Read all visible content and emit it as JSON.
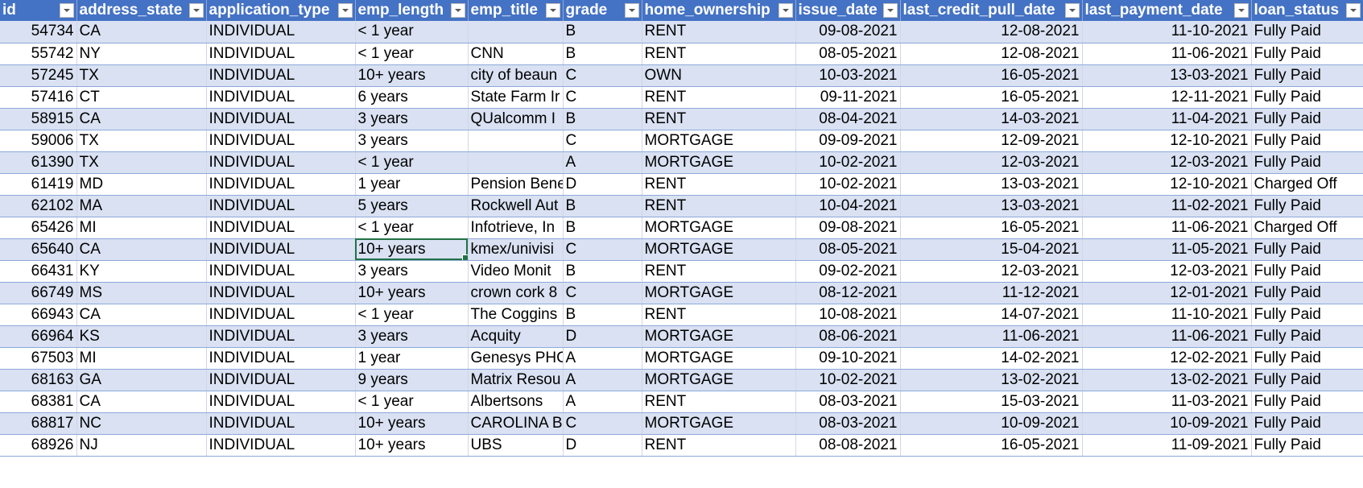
{
  "colors": {
    "header_bg": "#4472c4",
    "header_text": "#ffffff",
    "band_row": "#d9e1f2",
    "plain_row": "#ffffff",
    "selection": "#217346"
  },
  "filter_icon": "dropdown-arrow-icon",
  "selected_cell": {
    "row": 10,
    "column": "emp_length"
  },
  "headers": [
    "id",
    "address_state",
    "application_type",
    "emp_length",
    "emp_title",
    "grade",
    "home_ownership",
    "issue_date",
    "last_credit_pull_date",
    "last_payment_date",
    "loan_status"
  ],
  "rows": [
    [
      "54734",
      "CA",
      "INDIVIDUAL",
      "< 1 year",
      "",
      "B",
      "RENT",
      "09-08-2021",
      "12-08-2021",
      "11-10-2021",
      "Fully Paid"
    ],
    [
      "55742",
      "NY",
      "INDIVIDUAL",
      "< 1 year",
      "CNN",
      "B",
      "RENT",
      "08-05-2021",
      "12-08-2021",
      "11-06-2021",
      "Fully Paid"
    ],
    [
      "57245",
      "TX",
      "INDIVIDUAL",
      "10+ years",
      "city of beaun",
      "C",
      "OWN",
      "10-03-2021",
      "16-05-2021",
      "13-03-2021",
      "Fully Paid"
    ],
    [
      "57416",
      "CT",
      "INDIVIDUAL",
      "6 years",
      "State Farm Ir",
      "C",
      "RENT",
      "09-11-2021",
      "16-05-2021",
      "12-11-2021",
      "Fully Paid"
    ],
    [
      "58915",
      "CA",
      "INDIVIDUAL",
      "3 years",
      "QUalcomm I",
      "B",
      "RENT",
      "08-04-2021",
      "14-03-2021",
      "11-04-2021",
      "Fully Paid"
    ],
    [
      "59006",
      "TX",
      "INDIVIDUAL",
      "3 years",
      "",
      "C",
      "MORTGAGE",
      "09-09-2021",
      "12-09-2021",
      "12-10-2021",
      "Fully Paid"
    ],
    [
      "61390",
      "TX",
      "INDIVIDUAL",
      "< 1 year",
      "",
      "A",
      "MORTGAGE",
      "10-02-2021",
      "12-03-2021",
      "12-03-2021",
      "Fully Paid"
    ],
    [
      "61419",
      "MD",
      "INDIVIDUAL",
      "1 year",
      "Pension Bene",
      "D",
      "RENT",
      "10-02-2021",
      "13-03-2021",
      "12-10-2021",
      "Charged Off"
    ],
    [
      "62102",
      "MA",
      "INDIVIDUAL",
      "5 years",
      "Rockwell Aut",
      "B",
      "RENT",
      "10-04-2021",
      "13-03-2021",
      "11-02-2021",
      "Fully Paid"
    ],
    [
      "65426",
      "MI",
      "INDIVIDUAL",
      "< 1 year",
      "Infotrieve, In",
      "B",
      "MORTGAGE",
      "09-08-2021",
      "16-05-2021",
      "11-06-2021",
      "Charged Off"
    ],
    [
      "65640",
      "CA",
      "INDIVIDUAL",
      "10+ years",
      "kmex/univisi",
      "C",
      "MORTGAGE",
      "08-05-2021",
      "15-04-2021",
      "11-05-2021",
      "Fully Paid"
    ],
    [
      "66431",
      "KY",
      "INDIVIDUAL",
      "3 years",
      "Video Monit",
      "B",
      "RENT",
      "09-02-2021",
      "12-03-2021",
      "12-03-2021",
      "Fully Paid"
    ],
    [
      "66749",
      "MS",
      "INDIVIDUAL",
      "10+ years",
      "crown cork 8",
      "C",
      "MORTGAGE",
      "08-12-2021",
      "11-12-2021",
      "12-01-2021",
      "Fully Paid"
    ],
    [
      "66943",
      "CA",
      "INDIVIDUAL",
      "< 1 year",
      "The Coggins",
      "B",
      "RENT",
      "10-08-2021",
      "14-07-2021",
      "11-10-2021",
      "Fully Paid"
    ],
    [
      "66964",
      "KS",
      "INDIVIDUAL",
      "3 years",
      "Acquity",
      "D",
      "MORTGAGE",
      "08-06-2021",
      "11-06-2021",
      "11-06-2021",
      "Fully Paid"
    ],
    [
      "67503",
      "MI",
      "INDIVIDUAL",
      "1 year",
      "Genesys PHC",
      "A",
      "MORTGAGE",
      "09-10-2021",
      "14-02-2021",
      "12-02-2021",
      "Fully Paid"
    ],
    [
      "68163",
      "GA",
      "INDIVIDUAL",
      "9 years",
      "Matrix Resou",
      "A",
      "MORTGAGE",
      "10-02-2021",
      "13-02-2021",
      "13-02-2021",
      "Fully Paid"
    ],
    [
      "68381",
      "CA",
      "INDIVIDUAL",
      "< 1 year",
      "Albertsons",
      "A",
      "RENT",
      "08-03-2021",
      "15-03-2021",
      "11-03-2021",
      "Fully Paid"
    ],
    [
      "68817",
      "NC",
      "INDIVIDUAL",
      "10+ years",
      "CAROLINA BI",
      "C",
      "MORTGAGE",
      "08-03-2021",
      "10-09-2021",
      "10-09-2021",
      "Fully Paid"
    ],
    [
      "68926",
      "NJ",
      "INDIVIDUAL",
      "10+ years",
      "UBS",
      "D",
      "RENT",
      "08-08-2021",
      "16-05-2021",
      "11-09-2021",
      "Fully Paid"
    ]
  ]
}
